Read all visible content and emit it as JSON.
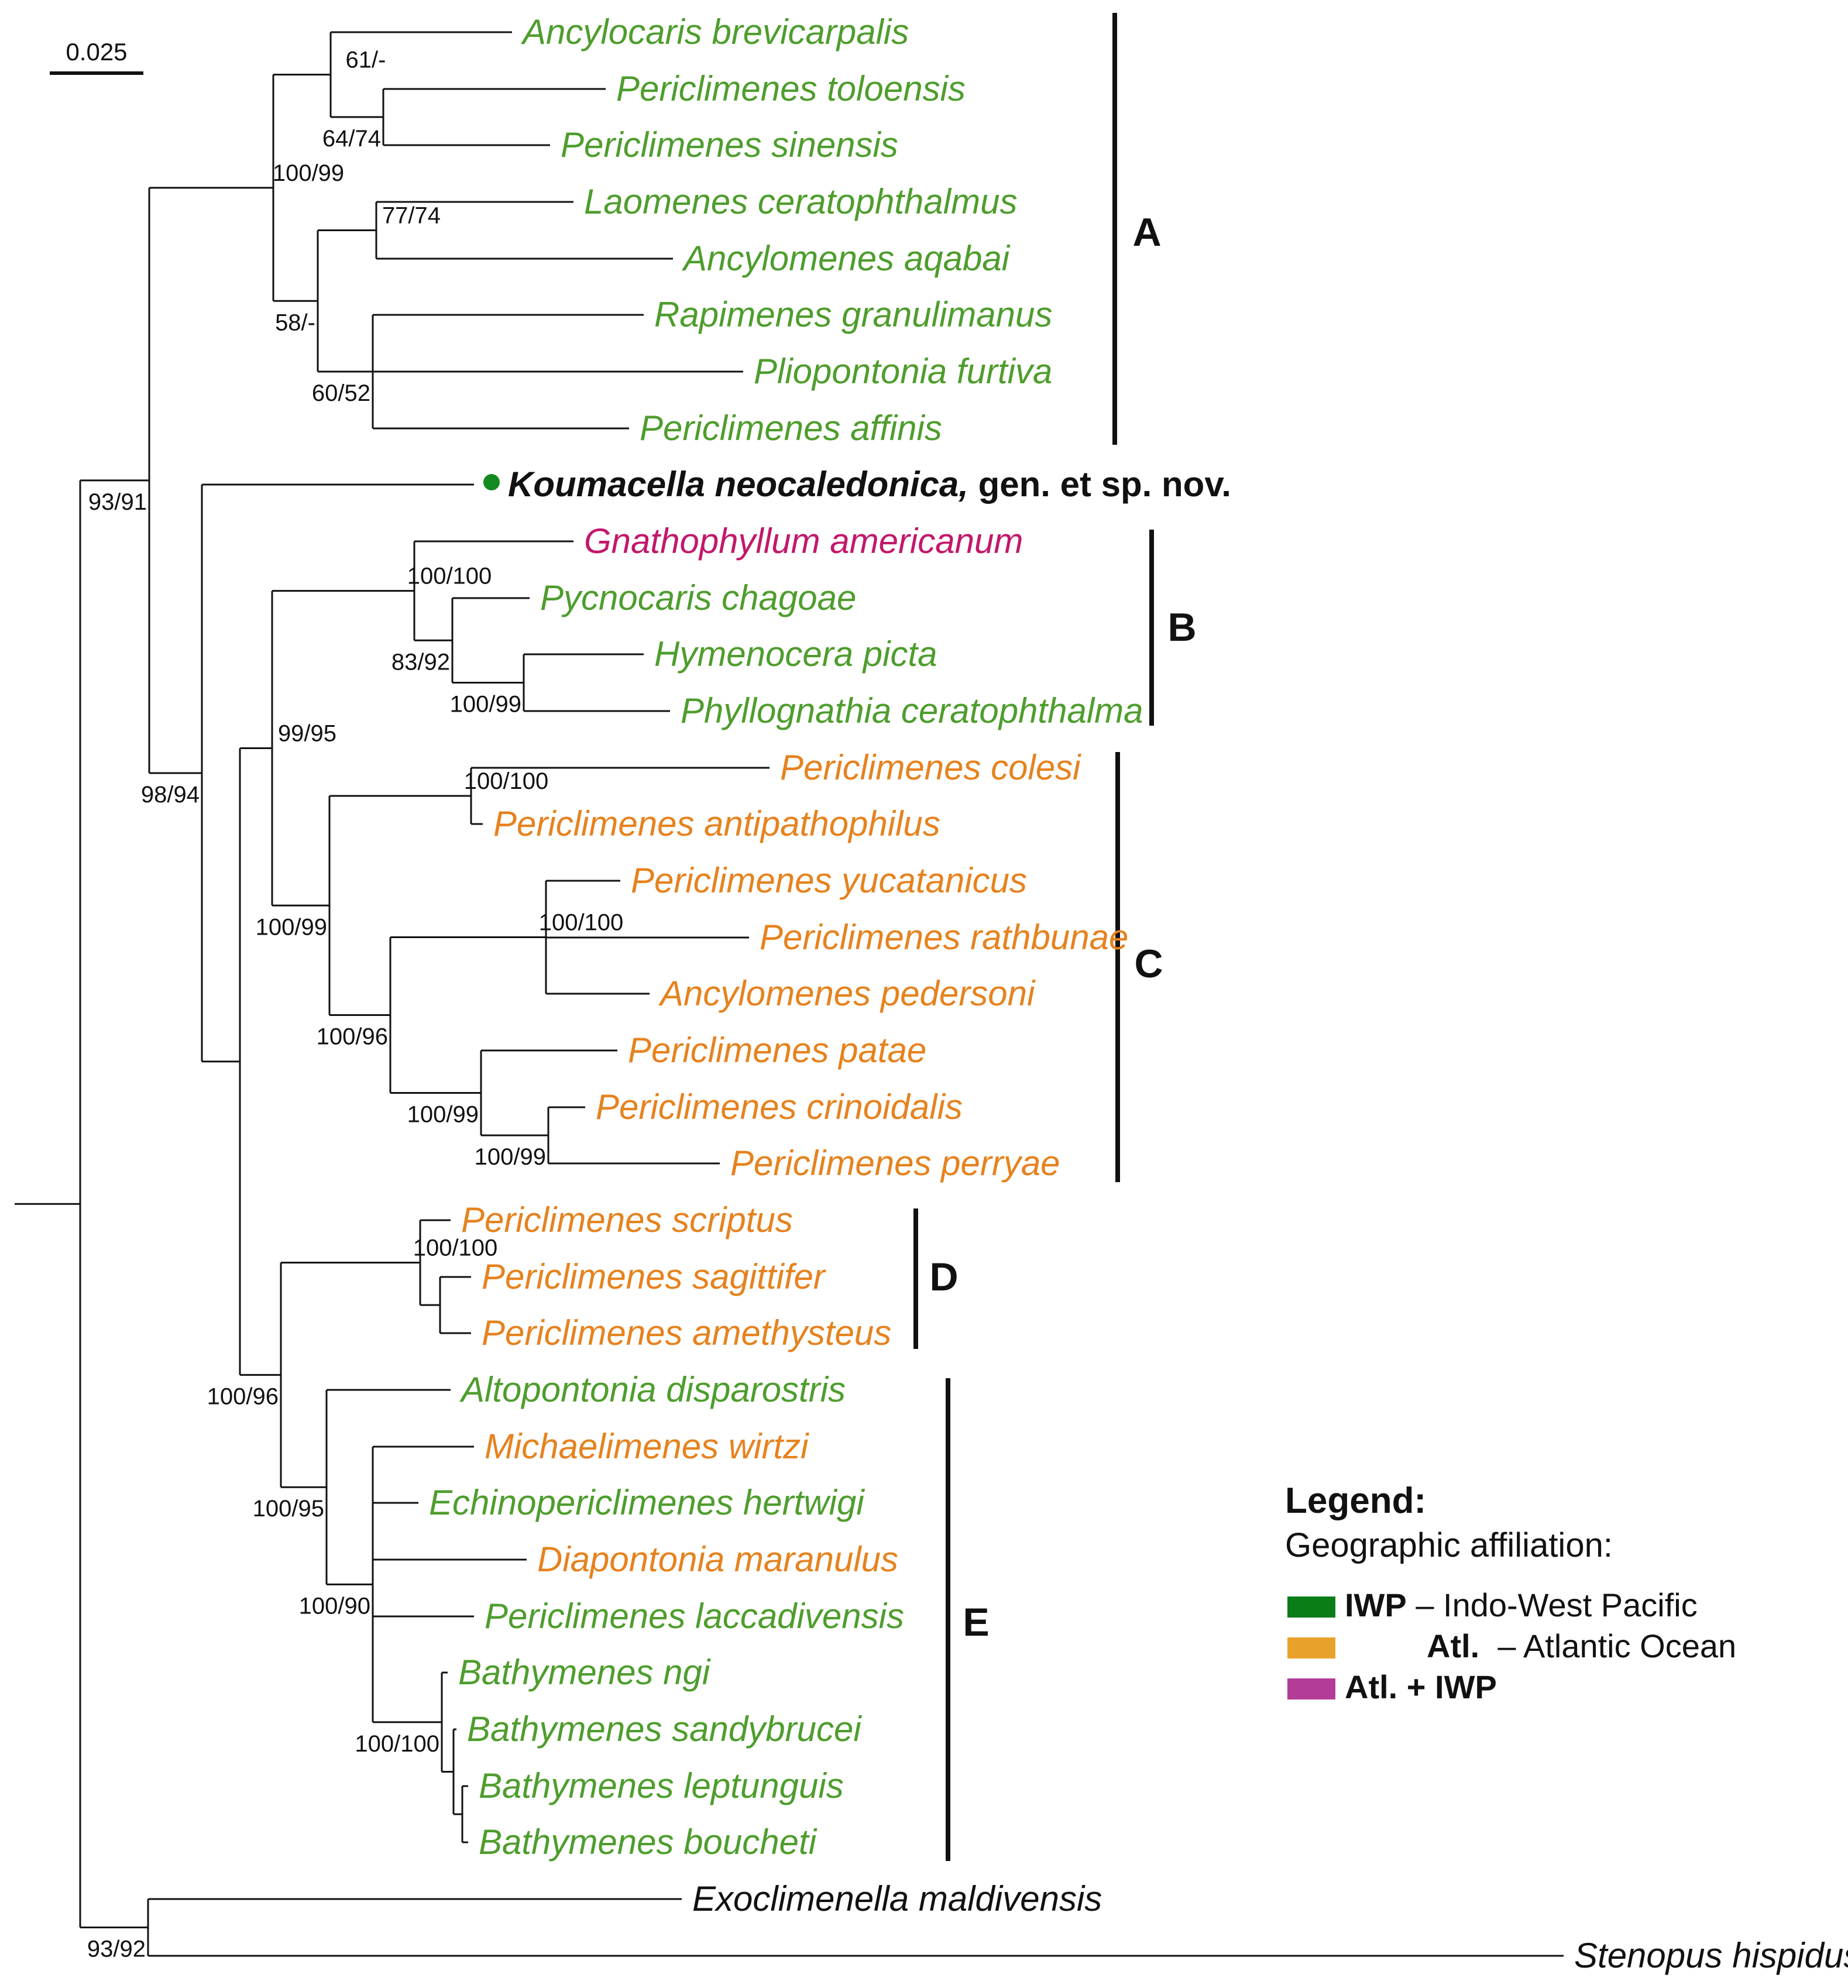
{
  "colors": {
    "iwp": "#4e9d2d",
    "atl": "#e6821e",
    "atl_iwp": "#c2186a",
    "new_species": "#111111",
    "outgroup": "#111111",
    "marker": "#138a1f",
    "legend_iwp": "#0a7d19",
    "legend_atl": "#e8a22a",
    "legend_atl_iwp": "#b33c98"
  },
  "scale_bar": {
    "label": "0.025"
  },
  "taxa": {
    "ancylocaris_brevicarpalis": {
      "name": "Ancylocaris brevicarpalis",
      "region": "iwp"
    },
    "periclimenes_toloensis": {
      "name": "Periclimenes toloensis",
      "region": "iwp"
    },
    "periclimenes_sinensis": {
      "name": "Periclimenes sinensis",
      "region": "iwp"
    },
    "laomenes_ceratophthalmus": {
      "name": "Laomenes ceratophthalmus",
      "region": "iwp"
    },
    "ancylomenes_aqabai": {
      "name": "Ancylomenes aqabai",
      "region": "iwp"
    },
    "rapimenes_granulimanus": {
      "name": "Rapimenes granulimanus",
      "region": "iwp"
    },
    "pliopontonia_furtiva": {
      "name": "Pliopontonia furtiva",
      "region": "iwp"
    },
    "periclimenes_affinis": {
      "name": "Periclimenes affinis",
      "region": "iwp"
    },
    "koumacella_neocaledonica": {
      "name": "Koumacella neocaledonica,",
      "suffix": " gen. et sp. nov.",
      "region": "new_species"
    },
    "gnathophyllum_americanum": {
      "name": "Gnathophyllum americanum",
      "region": "atl_iwp"
    },
    "pycnocaris_chagoae": {
      "name": "Pycnocaris chagoae",
      "region": "iwp"
    },
    "hymenocera_picta": {
      "name": "Hymenocera picta",
      "region": "iwp"
    },
    "phyllognathia_ceratophthalma": {
      "name": "Phyllognathia ceratophthalma",
      "region": "iwp"
    },
    "periclimenes_colesi": {
      "name": "Periclimenes colesi",
      "region": "atl"
    },
    "periclimenes_antipathophilus": {
      "name": "Periclimenes antipathophilus",
      "region": "atl"
    },
    "periclimenes_yucatanicus": {
      "name": "Periclimenes yucatanicus",
      "region": "atl"
    },
    "periclimenes_rathbunae": {
      "name": "Periclimenes rathbunae",
      "region": "atl"
    },
    "ancylomenes_pedersoni": {
      "name": "Ancylomenes pedersoni",
      "region": "atl"
    },
    "periclimenes_patae": {
      "name": "Periclimenes patae",
      "region": "atl"
    },
    "periclimenes_crinoidalis": {
      "name": "Periclimenes crinoidalis",
      "region": "atl"
    },
    "periclimenes_perryae": {
      "name": "Periclimenes perryae",
      "region": "atl"
    },
    "periclimenes_scriptus": {
      "name": "Periclimenes scriptus",
      "region": "atl"
    },
    "periclimenes_sagittifer": {
      "name": "Periclimenes sagittifer",
      "region": "atl"
    },
    "periclimenes_amethysteus": {
      "name": "Periclimenes amethysteus",
      "region": "atl"
    },
    "altopontonia_disparostris": {
      "name": "Altopontonia disparostris",
      "region": "iwp"
    },
    "michaelimenes_wirtzi": {
      "name": "Michaelimenes wirtzi",
      "region": "atl"
    },
    "echinopericlimenes_hertwigi": {
      "name": "Echinopericlimenes hertwigi",
      "region": "iwp"
    },
    "diapontonia_maranulus": {
      "name": "Diapontonia maranulus",
      "region": "atl"
    },
    "periclimenes_laccadivensis": {
      "name": "Periclimenes laccadivensis",
      "region": "iwp"
    },
    "bathymenes_ngi": {
      "name": "Bathymenes ngi",
      "region": "iwp"
    },
    "bathymenes_sandybrucei": {
      "name": "Bathymenes sandybrucei",
      "region": "iwp"
    },
    "bathymenes_leptunguis": {
      "name": "Bathymenes leptunguis",
      "region": "iwp"
    },
    "bathymenes_boucheti": {
      "name": "Bathymenes boucheti",
      "region": "iwp"
    },
    "exoclimenella_maldivensis": {
      "name": "Exoclimenella maldivensis",
      "region": "outgroup"
    },
    "stenopus_hispidus": {
      "name": "Stenopus hispidus",
      "region": "outgroup"
    }
  },
  "support_values": {
    "n_abp": "61/-",
    "n_tosi": "64/74",
    "n_ancyl_group": "100/99",
    "n_lao_aqa": "77/74",
    "n_lao_rap": "58/-",
    "n_rap_group": "60/52",
    "n_gnath": "100/100",
    "n_pycno": "83/92",
    "n_hymen": "100/99",
    "n_b_c": "99/95",
    "n_colesi": "100/100",
    "n_c": "100/99",
    "n_yuca": "100/100",
    "n_yuca_patae": "100/96",
    "n_patae": "100/99",
    "n_crino": "100/99",
    "n_main": "93/91",
    "n_koum_rest": "98/94",
    "n_d": "100/100",
    "n_de": "100/96",
    "n_e": "100/95",
    "n_e_inner": "100/90",
    "n_bathy": "100/100",
    "n_outgroup": "93/92"
  },
  "clades": [
    {
      "label": "A",
      "members": "Ancylocaris brevicarpalis to Periclimenes affinis"
    },
    {
      "label": "B",
      "members": "Gnathophyllum americanum to Phyllognathia ceratophthalma"
    },
    {
      "label": "C",
      "members": "Periclimenes colesi to Periclimenes perryae"
    },
    {
      "label": "D",
      "members": "Periclimenes scriptus to Periclimenes amethysteus"
    },
    {
      "label": "E",
      "members": "Altopontonia disparostris to Bathymenes boucheti"
    }
  ],
  "legend": {
    "title": "Legend:",
    "subtitle": "Geographic affiliation:",
    "items": [
      {
        "key": "legend_iwp",
        "code": "IWP",
        "desc": " – Indo-West Pacific"
      },
      {
        "key": "legend_atl",
        "code": "Atl.",
        "desc": "  – Atlantic Ocean"
      },
      {
        "key": "legend_atl_iwp",
        "code": "Atl. + IWP",
        "desc": ""
      }
    ]
  }
}
